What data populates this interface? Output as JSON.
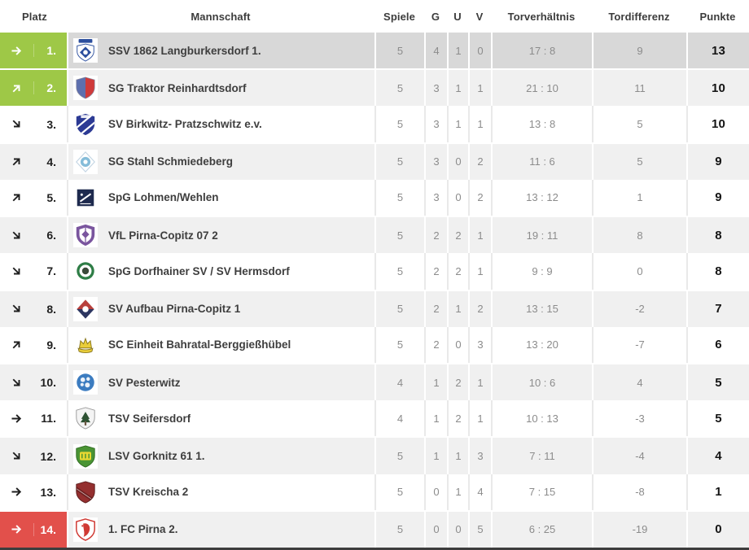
{
  "theme": {
    "zone_promotion": "#9ec847",
    "zone_relegation": "#e2504b",
    "row_highlight": "#d8d8d8",
    "row_striped": "#f0f0f0",
    "row_default": "#ffffff",
    "bottom_bar": "#3d3d3d"
  },
  "table": {
    "header": {
      "platz": "Platz",
      "mannschaft": "Mannschaft",
      "spiele": "Spiele",
      "g": "G",
      "u": "U",
      "v": "V",
      "torverhaeltnis": "Torverhältnis",
      "tordifferenz": "Tordifferenz",
      "punkte": "Punkte"
    },
    "trend_icons": {
      "right": "arrow-right-icon",
      "up": "arrow-up-right-icon",
      "down": "arrow-down-right-icon"
    },
    "rows": [
      {
        "rank": "1.",
        "trend": "right",
        "zone": "promotion",
        "highlight": true,
        "team": "SSV 1862 Langburkersdorf 1.",
        "logo": {
          "shape": "crest",
          "c1": "#2c4f9e",
          "c2": "#ffffff"
        },
        "spiele": "5",
        "g": "4",
        "u": "1",
        "v": "0",
        "tor": "17 : 8",
        "diff": "9",
        "punkte": "13"
      },
      {
        "rank": "2.",
        "trend": "up",
        "zone": "promotion",
        "highlight": false,
        "team": "SG Traktor Reinhardtsdorf",
        "logo": {
          "shape": "vsplit",
          "c1": "#5d6fae",
          "c2": "#cf3a3a"
        },
        "spiele": "5",
        "g": "3",
        "u": "1",
        "v": "1",
        "tor": "21 : 10",
        "diff": "11",
        "punkte": "10"
      },
      {
        "rank": "3.",
        "trend": "down",
        "zone": null,
        "highlight": false,
        "team": "SV Birkwitz- Pratzschwitz e.v.",
        "logo": {
          "shape": "stripes",
          "c1": "#2c3a94",
          "c2": "#ffffff"
        },
        "spiele": "5",
        "g": "3",
        "u": "1",
        "v": "1",
        "tor": "13 : 8",
        "diff": "5",
        "punkte": "10"
      },
      {
        "rank": "4.",
        "trend": "up",
        "zone": null,
        "highlight": false,
        "team": "SG Stahl Schmiedeberg",
        "logo": {
          "shape": "diamond",
          "c1": "#85bcd9",
          "c2": "#ffffff"
        },
        "spiele": "5",
        "g": "3",
        "u": "0",
        "v": "2",
        "tor": "11 : 6",
        "diff": "5",
        "punkte": "9"
      },
      {
        "rank": "5.",
        "trend": "up",
        "zone": null,
        "highlight": false,
        "team": "SpG Lohmen/Wehlen",
        "logo": {
          "shape": "square",
          "c1": "#1e2a4e",
          "c2": "#ffffff"
        },
        "spiele": "5",
        "g": "3",
        "u": "0",
        "v": "2",
        "tor": "13 : 12",
        "diff": "1",
        "punkte": "9"
      },
      {
        "rank": "6.",
        "trend": "down",
        "zone": null,
        "highlight": false,
        "team": "VfL Pirna-Copitz 07 2",
        "logo": {
          "shape": "ishield",
          "c1": "#7a559e",
          "c2": "#ffffff"
        },
        "spiele": "5",
        "g": "2",
        "u": "2",
        "v": "1",
        "tor": "19 : 11",
        "diff": "8",
        "punkte": "8"
      },
      {
        "rank": "7.",
        "trend": "down",
        "zone": null,
        "highlight": false,
        "team": "SpG Dorfhainer SV / SV Hermsdorf",
        "logo": {
          "shape": "ring",
          "c1": "#2e7d46",
          "c2": "#3a4a3a"
        },
        "spiele": "5",
        "g": "2",
        "u": "2",
        "v": "1",
        "tor": "9 : 9",
        "diff": "0",
        "punkte": "8"
      },
      {
        "rank": "8.",
        "trend": "down",
        "zone": null,
        "highlight": false,
        "team": "SV Aufbau Pirna-Copitz 1",
        "logo": {
          "shape": "dsplit",
          "c1": "#b8403c",
          "c2": "#2c3560"
        },
        "spiele": "5",
        "g": "2",
        "u": "1",
        "v": "2",
        "tor": "13 : 15",
        "diff": "-2",
        "punkte": "7"
      },
      {
        "rank": "9.",
        "trend": "up",
        "zone": null,
        "highlight": false,
        "team": "SC Einheit Bahratal-Berggießhübel",
        "logo": {
          "shape": "crown",
          "c1": "#e9cd3a",
          "c2": "#8a7820"
        },
        "spiele": "5",
        "g": "2",
        "u": "0",
        "v": "3",
        "tor": "13 : 20",
        "diff": "-7",
        "punkte": "6"
      },
      {
        "rank": "10.",
        "trend": "down",
        "zone": null,
        "highlight": false,
        "team": "SV Pesterwitz",
        "logo": {
          "shape": "circle",
          "c1": "#3c7cc0",
          "c2": "#ffffff"
        },
        "spiele": "4",
        "g": "1",
        "u": "2",
        "v": "1",
        "tor": "10 : 6",
        "diff": "4",
        "punkte": "5"
      },
      {
        "rank": "11.",
        "trend": "right",
        "zone": null,
        "highlight": false,
        "team": "TSV Seifersdorf",
        "logo": {
          "shape": "tree",
          "c1": "#f4f4f4",
          "c2": "#2e5233"
        },
        "spiele": "4",
        "g": "1",
        "u": "2",
        "v": "1",
        "tor": "10 : 13",
        "diff": "-3",
        "punkte": "5"
      },
      {
        "rank": "12.",
        "trend": "down",
        "zone": null,
        "highlight": false,
        "team": "LSV Gorknitz 61 1.",
        "logo": {
          "shape": "letters",
          "c1": "#4a9434",
          "c2": "#e8d832"
        },
        "spiele": "5",
        "g": "1",
        "u": "1",
        "v": "3",
        "tor": "7 : 11",
        "diff": "-4",
        "punkte": "4"
      },
      {
        "rank": "13.",
        "trend": "right",
        "zone": null,
        "highlight": false,
        "team": "TSV Kreischa 2",
        "logo": {
          "shape": "band",
          "c1": "#942f2f",
          "c2": "#6e1f1f"
        },
        "spiele": "5",
        "g": "0",
        "u": "1",
        "v": "4",
        "tor": "7 : 15",
        "diff": "-8",
        "punkte": "1"
      },
      {
        "rank": "14.",
        "trend": "right",
        "zone": "relegation",
        "highlight": false,
        "team": "1. FC Pirna 2.",
        "logo": {
          "shape": "lion",
          "c1": "#d03a34",
          "c2": "#ffffff"
        },
        "spiele": "5",
        "g": "0",
        "u": "0",
        "v": "5",
        "tor": "6 : 25",
        "diff": "-19",
        "punkte": "0"
      }
    ]
  }
}
